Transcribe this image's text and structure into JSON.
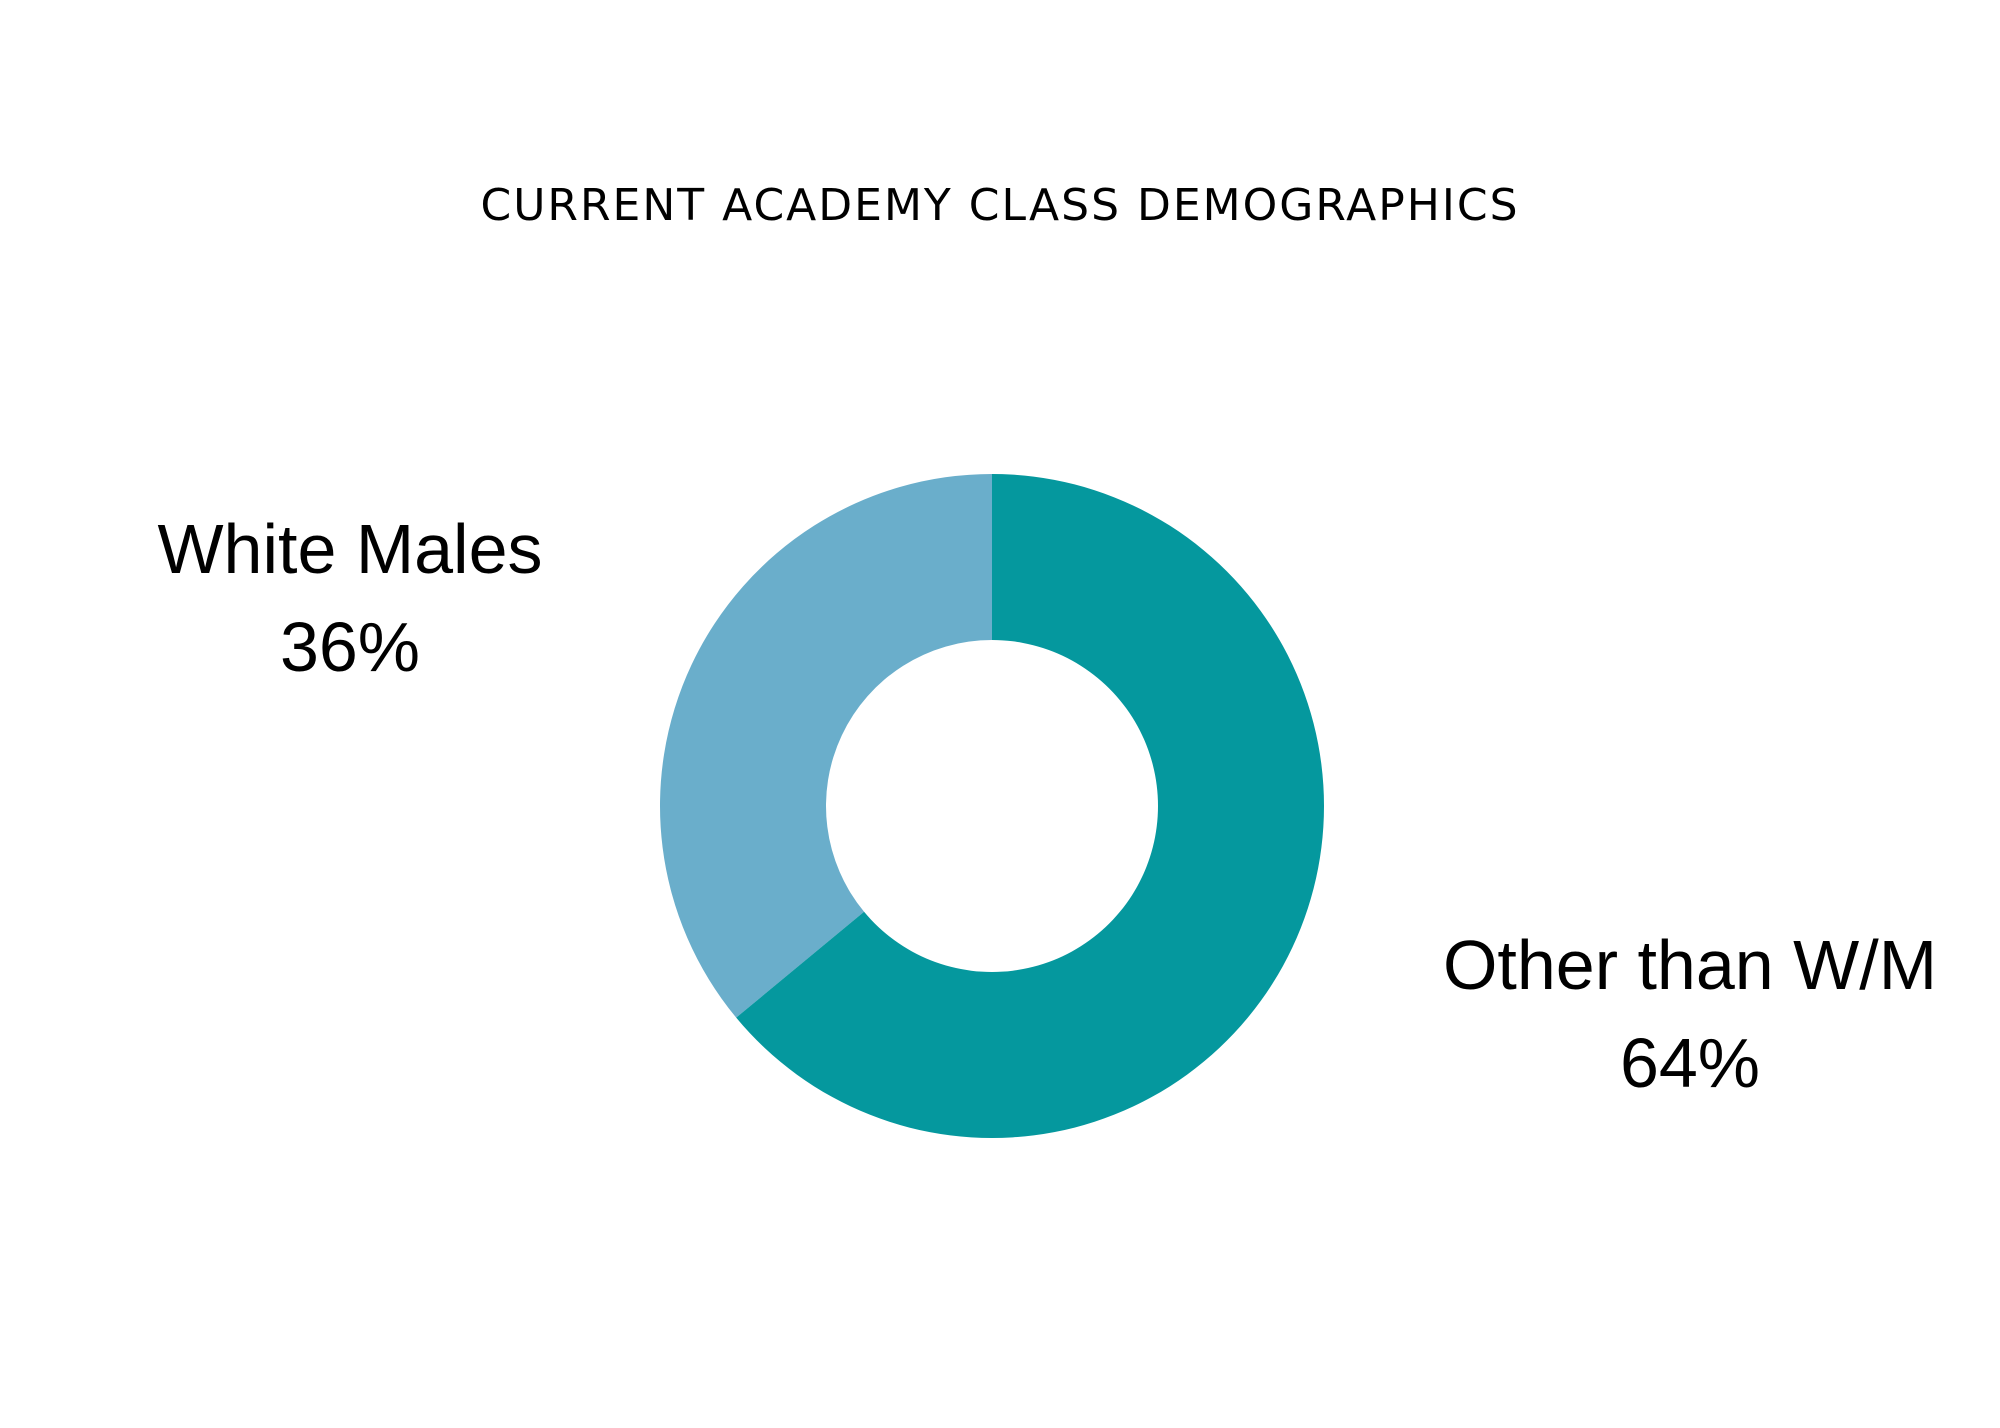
{
  "chart_data": {
    "type": "pie",
    "title": "CURRENT ACADEMY CLASS DEMOGRAPHICS",
    "style": "donut",
    "slices": [
      {
        "label": "White Males",
        "value": 36,
        "value_label": "36%",
        "color": "#6aaecb"
      },
      {
        "label": "Other than W/M",
        "value": 64,
        "value_label": "64%",
        "color": "#05989e"
      }
    ]
  },
  "colors": {
    "background": "#ffffff",
    "text": "#000000"
  }
}
